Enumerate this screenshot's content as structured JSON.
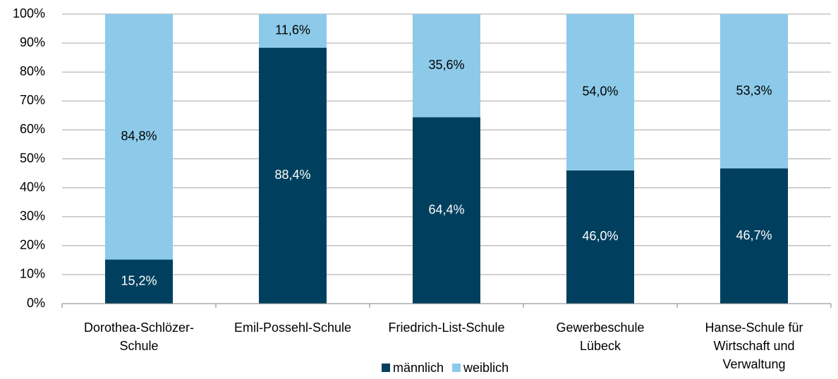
{
  "chart_data": {
    "type": "stacked_bar_100",
    "categories": [
      [
        "Dorothea-Schlözer-",
        "Schule"
      ],
      [
        "Emil-Possehl-Schule"
      ],
      [
        "Friedrich-List-Schule"
      ],
      [
        "Gewerbeschule",
        "Lübeck"
      ],
      [
        "Hanse-Schule für",
        "Wirtschaft und",
        "Verwaltung"
      ]
    ],
    "series": [
      {
        "name": "männlich",
        "color": "#00405e",
        "label_color": "#ffffff",
        "values": [
          15.2,
          88.4,
          64.4,
          46.0,
          46.7
        ],
        "value_labels": [
          "15,2%",
          "88,4%",
          "64,4%",
          "46,0%",
          "46,7%"
        ]
      },
      {
        "name": "weiblich",
        "color": "#8dcae9",
        "label_color": "#000000",
        "values": [
          84.8,
          11.6,
          35.6,
          54.0,
          53.3
        ],
        "value_labels": [
          "84,8%",
          "11,6%",
          "35,6%",
          "54,0%",
          "53,3%"
        ]
      }
    ],
    "ylim": [
      0,
      100
    ],
    "yticks": [
      {
        "value": 0,
        "label": "0%"
      },
      {
        "value": 10,
        "label": "10%"
      },
      {
        "value": 20,
        "label": "20%"
      },
      {
        "value": 30,
        "label": "30%"
      },
      {
        "value": 40,
        "label": "40%"
      },
      {
        "value": 50,
        "label": "50%"
      },
      {
        "value": 60,
        "label": "60%"
      },
      {
        "value": 70,
        "label": "70%"
      },
      {
        "value": 80,
        "label": "80%"
      },
      {
        "value": 90,
        "label": "90%"
      },
      {
        "value": 100,
        "label": "100%"
      }
    ],
    "grid": true,
    "legend": "bottom"
  }
}
